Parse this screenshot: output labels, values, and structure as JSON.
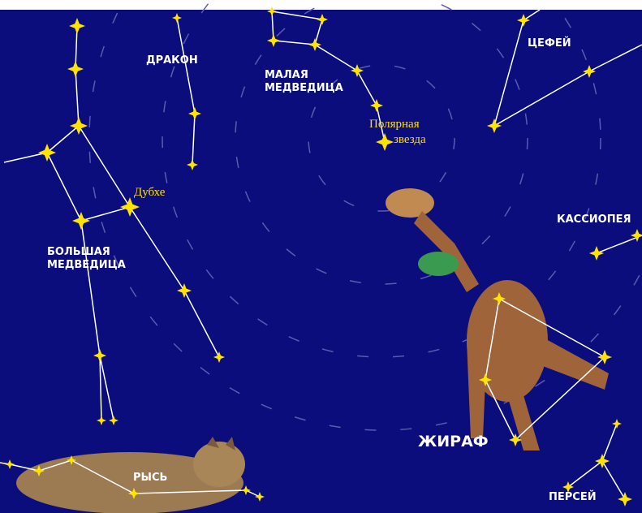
{
  "labels": [
    {
      "lines": [
        "ДРАКОН"
      ]
    },
    {
      "lines": [
        "МАЛАЯ",
        "МЕДВЕДИЦА"
      ]
    },
    {
      "lines": [
        "ЦЕФЕЙ"
      ]
    },
    {
      "lines": [
        "Полярная",
        "звезда"
      ]
    },
    {
      "lines": [
        "Дубхе"
      ]
    },
    {
      "lines": [
        "БОЛЬШАЯ",
        "МЕДВЕДИЦА"
      ]
    },
    {
      "lines": [
        "КАССИОПЕЯ"
      ]
    },
    {
      "lines": [
        "ЖИРАФ"
      ]
    },
    {
      "lines": [
        "РЫСЬ"
      ]
    },
    {
      "lines": [
        "ПЕРСЕЙ"
      ]
    }
  ]
}
